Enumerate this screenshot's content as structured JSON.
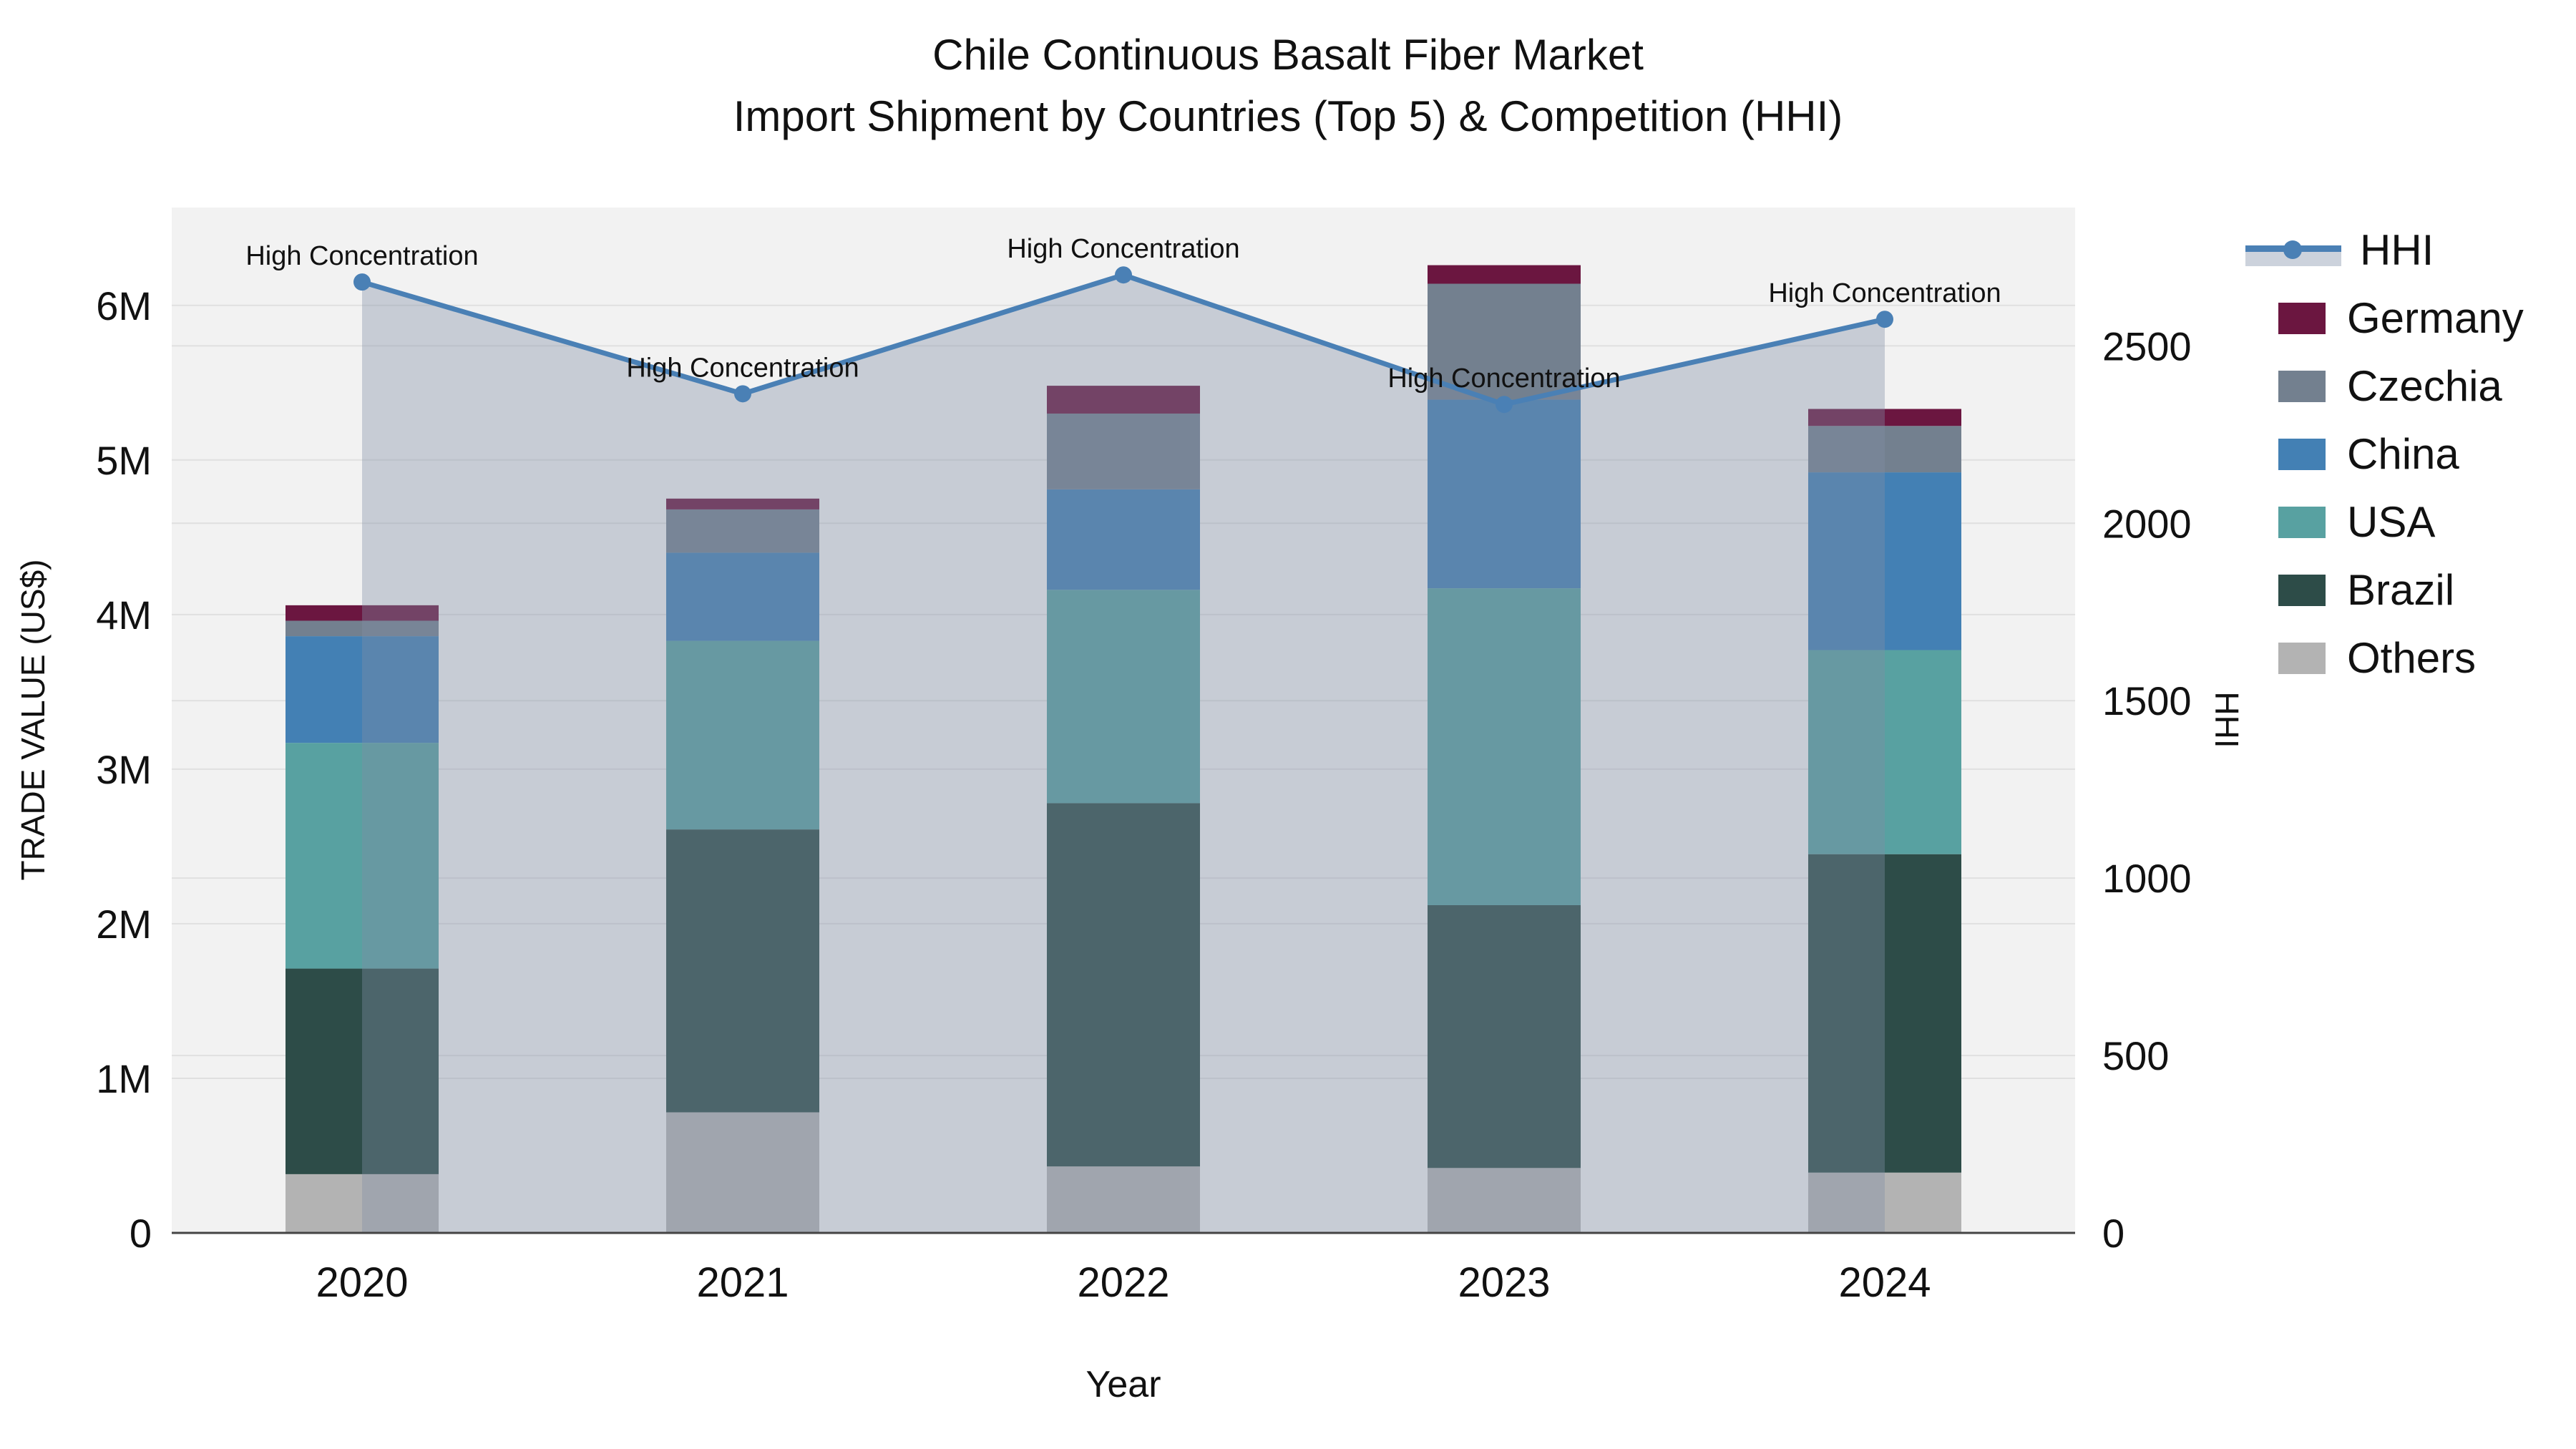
{
  "title": {
    "line1": "Chile Continuous Basalt Fiber Market",
    "line2": "Import Shipment by Countries (Top 5) & Competition (HHI)"
  },
  "chart_data": {
    "type": "bar",
    "subtype": "stacked-bars-with-line-overlay",
    "categories": [
      "2020",
      "2021",
      "2022",
      "2023",
      "2024"
    ],
    "xlabel": "Year",
    "ylabel": "TRADE VALUE (US$)",
    "y2label": "HHI",
    "series": [
      {
        "name": "Others",
        "color": "#b3b3b3",
        "values": [
          380000,
          780000,
          430000,
          420000,
          390000
        ]
      },
      {
        "name": "Brazil",
        "color": "#2d4c48",
        "values": [
          1330000,
          1830000,
          2350000,
          1700000,
          2060000
        ]
      },
      {
        "name": "USA",
        "color": "#58a1a1",
        "values": [
          1460000,
          1220000,
          1380000,
          2050000,
          1320000
        ]
      },
      {
        "name": "China",
        "color": "#4380b4",
        "values": [
          690000,
          570000,
          650000,
          1220000,
          1150000
        ]
      },
      {
        "name": "Czechia",
        "color": "#73808f",
        "values": [
          100000,
          280000,
          490000,
          750000,
          300000
        ]
      },
      {
        "name": "Germany",
        "color": "#6b1640",
        "values": [
          100000,
          70000,
          180000,
          120000,
          110000
        ]
      }
    ],
    "line_series": {
      "name": "HHI",
      "color": "#4a80b5",
      "fill_color": "#808ea6",
      "fill_opacity": 0.38,
      "values": [
        2680,
        2365,
        2700,
        2335,
        2575
      ]
    },
    "annotation_text": "High Concentration",
    "annotations_on_every_point": true,
    "yticks": {
      "labels": [
        "0",
        "1M",
        "2M",
        "3M",
        "4M",
        "5M",
        "6M"
      ],
      "values": [
        0,
        1000000,
        2000000,
        3000000,
        4000000,
        5000000,
        6000000
      ]
    },
    "y2ticks": {
      "labels": [
        "0",
        "500",
        "1000",
        "1500",
        "2000",
        "2500"
      ],
      "values": [
        0,
        500,
        1000,
        1500,
        2000,
        2500
      ]
    },
    "ylim": [
      0,
      6633000
    ],
    "y2lim": [
      0,
      2890
    ],
    "grid": true,
    "legend_position": "right-outside",
    "plot_bg": "#f2f2f2",
    "grid_color": "#e0e0e0",
    "axis_line_color": "#444444",
    "text_color": "#111111"
  },
  "legend": {
    "items": [
      {
        "label": "HHI",
        "type": "line"
      },
      {
        "label": "Germany",
        "type": "swatch",
        "color": "#6b1640"
      },
      {
        "label": "Czechia",
        "type": "swatch",
        "color": "#73808f"
      },
      {
        "label": "China",
        "type": "swatch",
        "color": "#4380b4"
      },
      {
        "label": "USA",
        "type": "swatch",
        "color": "#58a1a1"
      },
      {
        "label": "Brazil",
        "type": "swatch",
        "color": "#2d4c48"
      },
      {
        "label": "Others",
        "type": "swatch",
        "color": "#b3b3b3"
      }
    ]
  }
}
